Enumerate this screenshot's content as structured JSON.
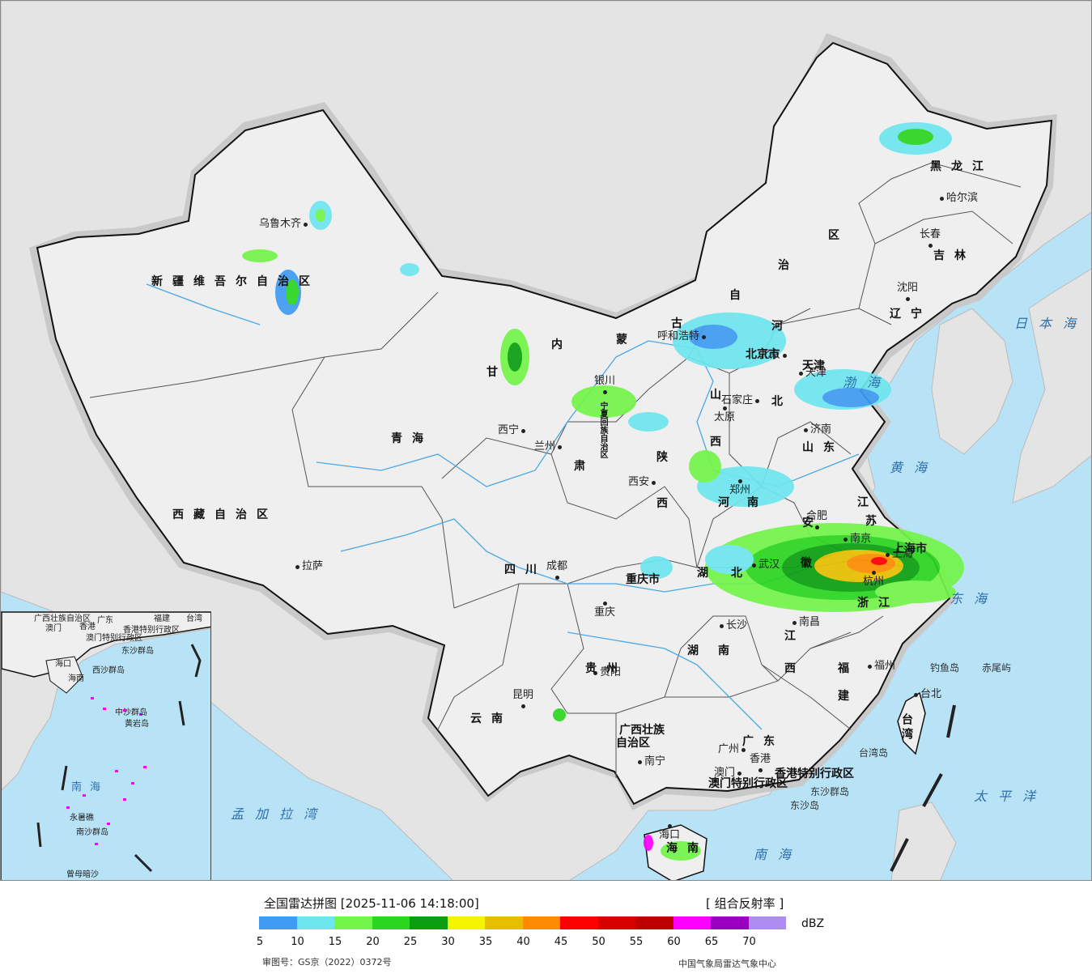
{
  "header": {
    "title": "全国雷达拼图 [2025-11-06 14:18:00]",
    "product": "[ 组合反射率 ]"
  },
  "legend": {
    "unit": "dBZ",
    "ticks": [
      "5",
      "10",
      "15",
      "20",
      "25",
      "30",
      "35",
      "40",
      "45",
      "50",
      "55",
      "60",
      "65",
      "70"
    ],
    "colors": [
      "#3f9cf2",
      "#6ee6ee",
      "#73f54a",
      "#2ad620",
      "#0b9f10",
      "#f5f500",
      "#e6c000",
      "#ff8c00",
      "#ff0000",
      "#d90000",
      "#bf0000",
      "#ff00ff",
      "#9a00bf",
      "#ad8ef0"
    ]
  },
  "footer": {
    "review_no": "审图号：GS京（2022）0372号",
    "agency": "中国气象局雷达气象中心"
  },
  "map": {
    "colors": {
      "sea": "#b8e3f7",
      "land": "#efefef",
      "foreign": "#e4e4e4",
      "halo": "#cccccc"
    },
    "cities": [
      {
        "name": "乌鲁木齐",
        "id": "urumqi"
      },
      {
        "name": "拉萨",
        "id": "lhasa"
      },
      {
        "name": "西宁",
        "id": "xining"
      },
      {
        "name": "兰州",
        "id": "lanzhou"
      },
      {
        "name": "银川",
        "id": "yinchuan"
      },
      {
        "name": "呼和浩特",
        "id": "hohhot"
      },
      {
        "name": "北京",
        "id": "beijing"
      },
      {
        "name": "天津",
        "id": "tianjin"
      },
      {
        "name": "石家庄",
        "id": "shijiazhuang"
      },
      {
        "name": "太原",
        "id": "taiyuan"
      },
      {
        "name": "济南",
        "id": "jinan"
      },
      {
        "name": "郑州",
        "id": "zhengzhou"
      },
      {
        "name": "西安",
        "id": "xian"
      },
      {
        "name": "成都",
        "id": "chengdu"
      },
      {
        "name": "重庆",
        "id": "chongqing"
      },
      {
        "name": "武汉",
        "id": "wuhan"
      },
      {
        "name": "合肥",
        "id": "hefei"
      },
      {
        "name": "南京",
        "id": "nanjing"
      },
      {
        "name": "上海",
        "id": "shanghai"
      },
      {
        "name": "杭州",
        "id": "hangzhou"
      },
      {
        "name": "南昌",
        "id": "nanchang"
      },
      {
        "name": "长沙",
        "id": "changsha"
      },
      {
        "name": "贵阳",
        "id": "guiyang"
      },
      {
        "name": "昆明",
        "id": "kunming"
      },
      {
        "name": "南宁",
        "id": "nanning"
      },
      {
        "name": "广州",
        "id": "guangzhou"
      },
      {
        "name": "香港",
        "id": "hongkong"
      },
      {
        "name": "澳门",
        "id": "macau"
      },
      {
        "name": "福州",
        "id": "fuzhou"
      },
      {
        "name": "台北",
        "id": "taipei"
      },
      {
        "name": "海口",
        "id": "haikou"
      },
      {
        "name": "沈阳",
        "id": "shenyang"
      },
      {
        "name": "长春",
        "id": "changchun"
      },
      {
        "name": "哈尔滨",
        "id": "harbin"
      }
    ],
    "provinces": [
      {
        "name": "新疆维吾尔自治区",
        "id": "xinjiang"
      },
      {
        "name": "西藏自治区",
        "id": "xizang"
      },
      {
        "name": "青海",
        "id": "qinghai"
      },
      {
        "name": "四川",
        "id": "sichuan"
      },
      {
        "name": "云南",
        "id": "yunnan"
      },
      {
        "name": "甘",
        "id": "gan1"
      },
      {
        "name": "肃",
        "id": "gan2"
      },
      {
        "name": "宁夏回族自治区",
        "id": "ningxia"
      },
      {
        "name": "内",
        "id": "nm1"
      },
      {
        "name": "蒙",
        "id": "nm2"
      },
      {
        "name": "古",
        "id": "nm3"
      },
      {
        "name": "自",
        "id": "nm4"
      },
      {
        "name": "治",
        "id": "nm5"
      },
      {
        "name": "区",
        "id": "nm6"
      },
      {
        "name": "黑龙江",
        "id": "heilongjiang"
      },
      {
        "name": "吉林",
        "id": "jilin"
      },
      {
        "name": "辽宁",
        "id": "liaoning"
      },
      {
        "name": "河",
        "id": "hebei1"
      },
      {
        "name": "北",
        "id": "hebei2"
      },
      {
        "name": "山",
        "id": "shanxi1"
      },
      {
        "name": "西",
        "id": "shanxi2"
      },
      {
        "name": "陕",
        "id": "shaanxi1"
      },
      {
        "name": "西",
        "id": "shaanxi2"
      },
      {
        "name": "山东",
        "id": "shandong"
      },
      {
        "name": "河",
        "id": "henan1"
      },
      {
        "name": "南",
        "id": "henan2"
      },
      {
        "name": "江",
        "id": "jiangsu1"
      },
      {
        "name": "苏",
        "id": "jiangsu2"
      },
      {
        "name": "安",
        "id": "anhui1"
      },
      {
        "name": "徽",
        "id": "anhui2"
      },
      {
        "name": "上海市",
        "id": "shanghai_p"
      },
      {
        "name": "浙江",
        "id": "zhejiang"
      },
      {
        "name": "湖",
        "id": "hubei1"
      },
      {
        "name": "北",
        "id": "hubei2"
      },
      {
        "name": "重庆市",
        "id": "chongqing_p"
      },
      {
        "name": "贵州",
        "id": "guizhou"
      },
      {
        "name": "湖",
        "id": "hunan1"
      },
      {
        "name": "南",
        "id": "hunan2"
      },
      {
        "name": "江",
        "id": "jiangxi1"
      },
      {
        "name": "西",
        "id": "jiangxi2"
      },
      {
        "name": "福",
        "id": "fujian1"
      },
      {
        "name": "建",
        "id": "fujian2"
      },
      {
        "name": "广西壮族",
        "id": "guangxi1"
      },
      {
        "name": "自治区",
        "id": "guangxi2"
      },
      {
        "name": "广东",
        "id": "guangdong"
      },
      {
        "name": "台湾",
        "id": "taiwan"
      },
      {
        "name": "海南",
        "id": "hainan"
      },
      {
        "name": "香港特别行政区",
        "id": "hk_sar"
      },
      {
        "name": "澳门特别行政区",
        "id": "mo_sar"
      },
      {
        "name": "北京市",
        "id": "beijing_p"
      },
      {
        "name": "天津",
        "id": "tianjin_p"
      }
    ],
    "seas": [
      {
        "name": "日本海",
        "id": "japan_sea"
      },
      {
        "name": "渤海",
        "id": "bohai"
      },
      {
        "name": "黄海",
        "id": "yellow_sea"
      },
      {
        "name": "东海",
        "id": "east_sea"
      },
      {
        "name": "太平洋",
        "id": "pacific"
      },
      {
        "name": "南海",
        "id": "south_sea"
      },
      {
        "name": "孟加拉湾",
        "id": "bengal"
      }
    ],
    "islands": [
      {
        "name": "钓鱼岛",
        "id": "diaoyu"
      },
      {
        "name": "赤尾屿",
        "id": "chiwei"
      },
      {
        "name": "台湾岛",
        "id": "taiwan_island"
      },
      {
        "name": "东沙群岛",
        "id": "dongsha_q"
      },
      {
        "name": "东沙岛",
        "id": "dongsha_d"
      }
    ],
    "inset": {
      "labels": [
        "广西壮族自治区",
        "广东",
        "福建",
        "台湾",
        "澳门",
        "香港",
        "香港特别行政区",
        "澳门特别行政区",
        "东沙群岛",
        "海口",
        "海南",
        "西沙群岛",
        "中沙群岛",
        "黄岩岛",
        "南海",
        "南沙群岛",
        "永暑礁",
        "曾母暗沙"
      ]
    }
  }
}
